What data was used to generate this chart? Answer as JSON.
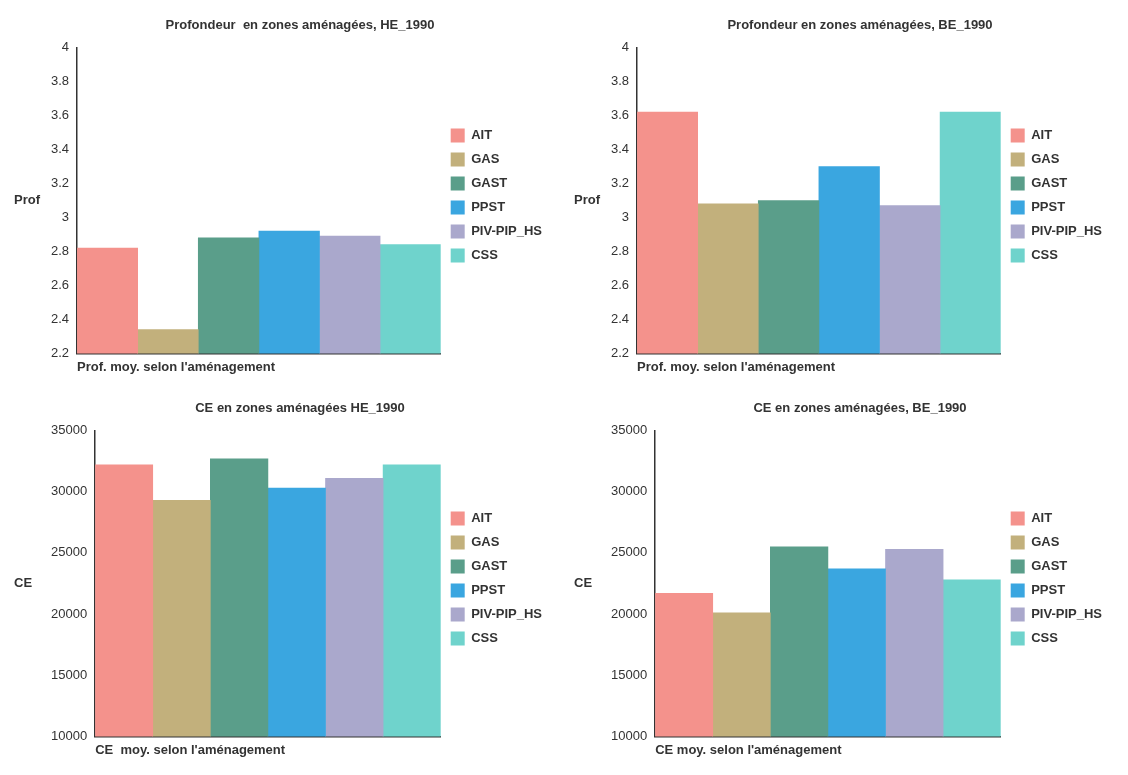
{
  "chart_data": [
    {
      "type": "bar",
      "title": "Profondeur  en zones aménagées, HE_1990",
      "xlabel": "Prof. moy. selon l'aménagement",
      "ylabel": "Prof",
      "categories": [
        null
      ],
      "ylim": [
        2.2,
        4
      ],
      "yticks": [
        2.2,
        2.4,
        2.6,
        2.8,
        3,
        3.2,
        3.4,
        3.6,
        3.8,
        4
      ],
      "grid": false,
      "legend": "right",
      "series": [
        {
          "name": "AIT",
          "color": "#f4928c",
          "values": [
            2.82
          ]
        },
        {
          "name": "GAS",
          "color": "#c2b07c",
          "values": [
            2.34
          ]
        },
        {
          "name": "GAST",
          "color": "#5a9e8a",
          "values": [
            2.88
          ]
        },
        {
          "name": "PPST",
          "color": "#3aa6e0",
          "values": [
            2.92
          ]
        },
        {
          "name": "PIV-PIP_HS",
          "color": "#aaa8cc",
          "values": [
            2.89
          ]
        },
        {
          "name": "CSS",
          "color": "#6fd3cc",
          "values": [
            2.84
          ]
        }
      ]
    },
    {
      "type": "bar",
      "title": "Profondeur en zones aménagées, BE_1990",
      "xlabel": "Prof. moy. selon l'aménagement",
      "ylabel": "Prof",
      "categories": [
        null
      ],
      "ylim": [
        2.2,
        4
      ],
      "yticks": [
        2.2,
        2.4,
        2.6,
        2.8,
        3,
        3.2,
        3.4,
        3.6,
        3.8,
        4
      ],
      "grid": false,
      "legend": "right",
      "series": [
        {
          "name": "AIT",
          "color": "#f4928c",
          "values": [
            3.62
          ]
        },
        {
          "name": "GAS",
          "color": "#c2b07c",
          "values": [
            3.08
          ]
        },
        {
          "name": "GAST",
          "color": "#5a9e8a",
          "values": [
            3.1
          ]
        },
        {
          "name": "PPST",
          "color": "#3aa6e0",
          "values": [
            3.3
          ]
        },
        {
          "name": "PIV-PIP_HS",
          "color": "#aaa8cc",
          "values": [
            3.07
          ]
        },
        {
          "name": "CSS",
          "color": "#6fd3cc",
          "values": [
            3.62
          ]
        }
      ]
    },
    {
      "type": "bar",
      "title": "CE en zones aménagées HE_1990",
      "xlabel": "CE  moy. selon l'aménagement",
      "ylabel": "CE",
      "categories": [
        null
      ],
      "ylim": [
        10000,
        35000
      ],
      "yticks": [
        10000,
        15000,
        20000,
        25000,
        30000,
        35000
      ],
      "grid": false,
      "legend": "right",
      "series": [
        {
          "name": "AIT",
          "color": "#f4928c",
          "values": [
            32200
          ]
        },
        {
          "name": "GAS",
          "color": "#c2b07c",
          "values": [
            29300
          ]
        },
        {
          "name": "GAST",
          "color": "#5a9e8a",
          "values": [
            32700
          ]
        },
        {
          "name": "PPST",
          "color": "#3aa6e0",
          "values": [
            30300
          ]
        },
        {
          "name": "PIV-PIP_HS",
          "color": "#aaa8cc",
          "values": [
            31100
          ]
        },
        {
          "name": "CSS",
          "color": "#6fd3cc",
          "values": [
            32200
          ]
        }
      ]
    },
    {
      "type": "bar",
      "title": "CE en zones aménagées, BE_1990",
      "xlabel": "CE moy. selon l'aménagement",
      "ylabel": "CE",
      "categories": [
        null
      ],
      "ylim": [
        10000,
        35000
      ],
      "yticks": [
        10000,
        15000,
        20000,
        25000,
        30000,
        35000
      ],
      "grid": false,
      "legend": "right",
      "series": [
        {
          "name": "AIT",
          "color": "#f4928c",
          "values": [
            21700
          ]
        },
        {
          "name": "GAS",
          "color": "#c2b07c",
          "values": [
            20100
          ]
        },
        {
          "name": "GAST",
          "color": "#5a9e8a",
          "values": [
            25500
          ]
        },
        {
          "name": "PPST",
          "color": "#3aa6e0",
          "values": [
            23700
          ]
        },
        {
          "name": "PIV-PIP_HS",
          "color": "#aaa8cc",
          "values": [
            25300
          ]
        },
        {
          "name": "CSS",
          "color": "#6fd3cc",
          "values": [
            22800
          ]
        }
      ]
    }
  ]
}
